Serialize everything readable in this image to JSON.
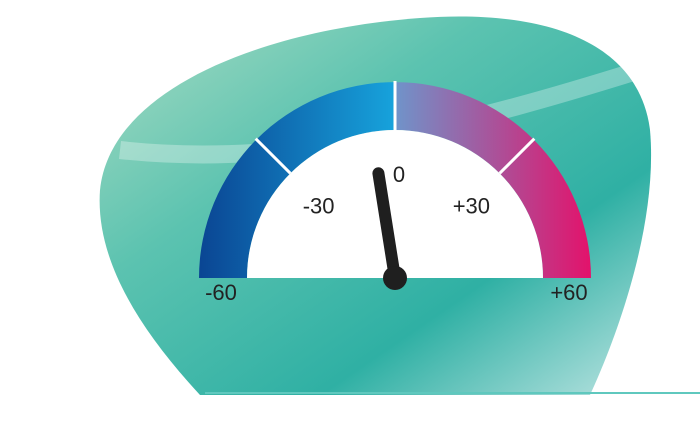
{
  "chart_data": {
    "type": "gauge",
    "value": -6,
    "ylim": [
      -60,
      60
    ],
    "yticks": [
      -60,
      -30,
      0,
      {
        "value": 30,
        "label": "+30"
      },
      {
        "value": 60,
        "label": "+60"
      }
    ]
  }
}
